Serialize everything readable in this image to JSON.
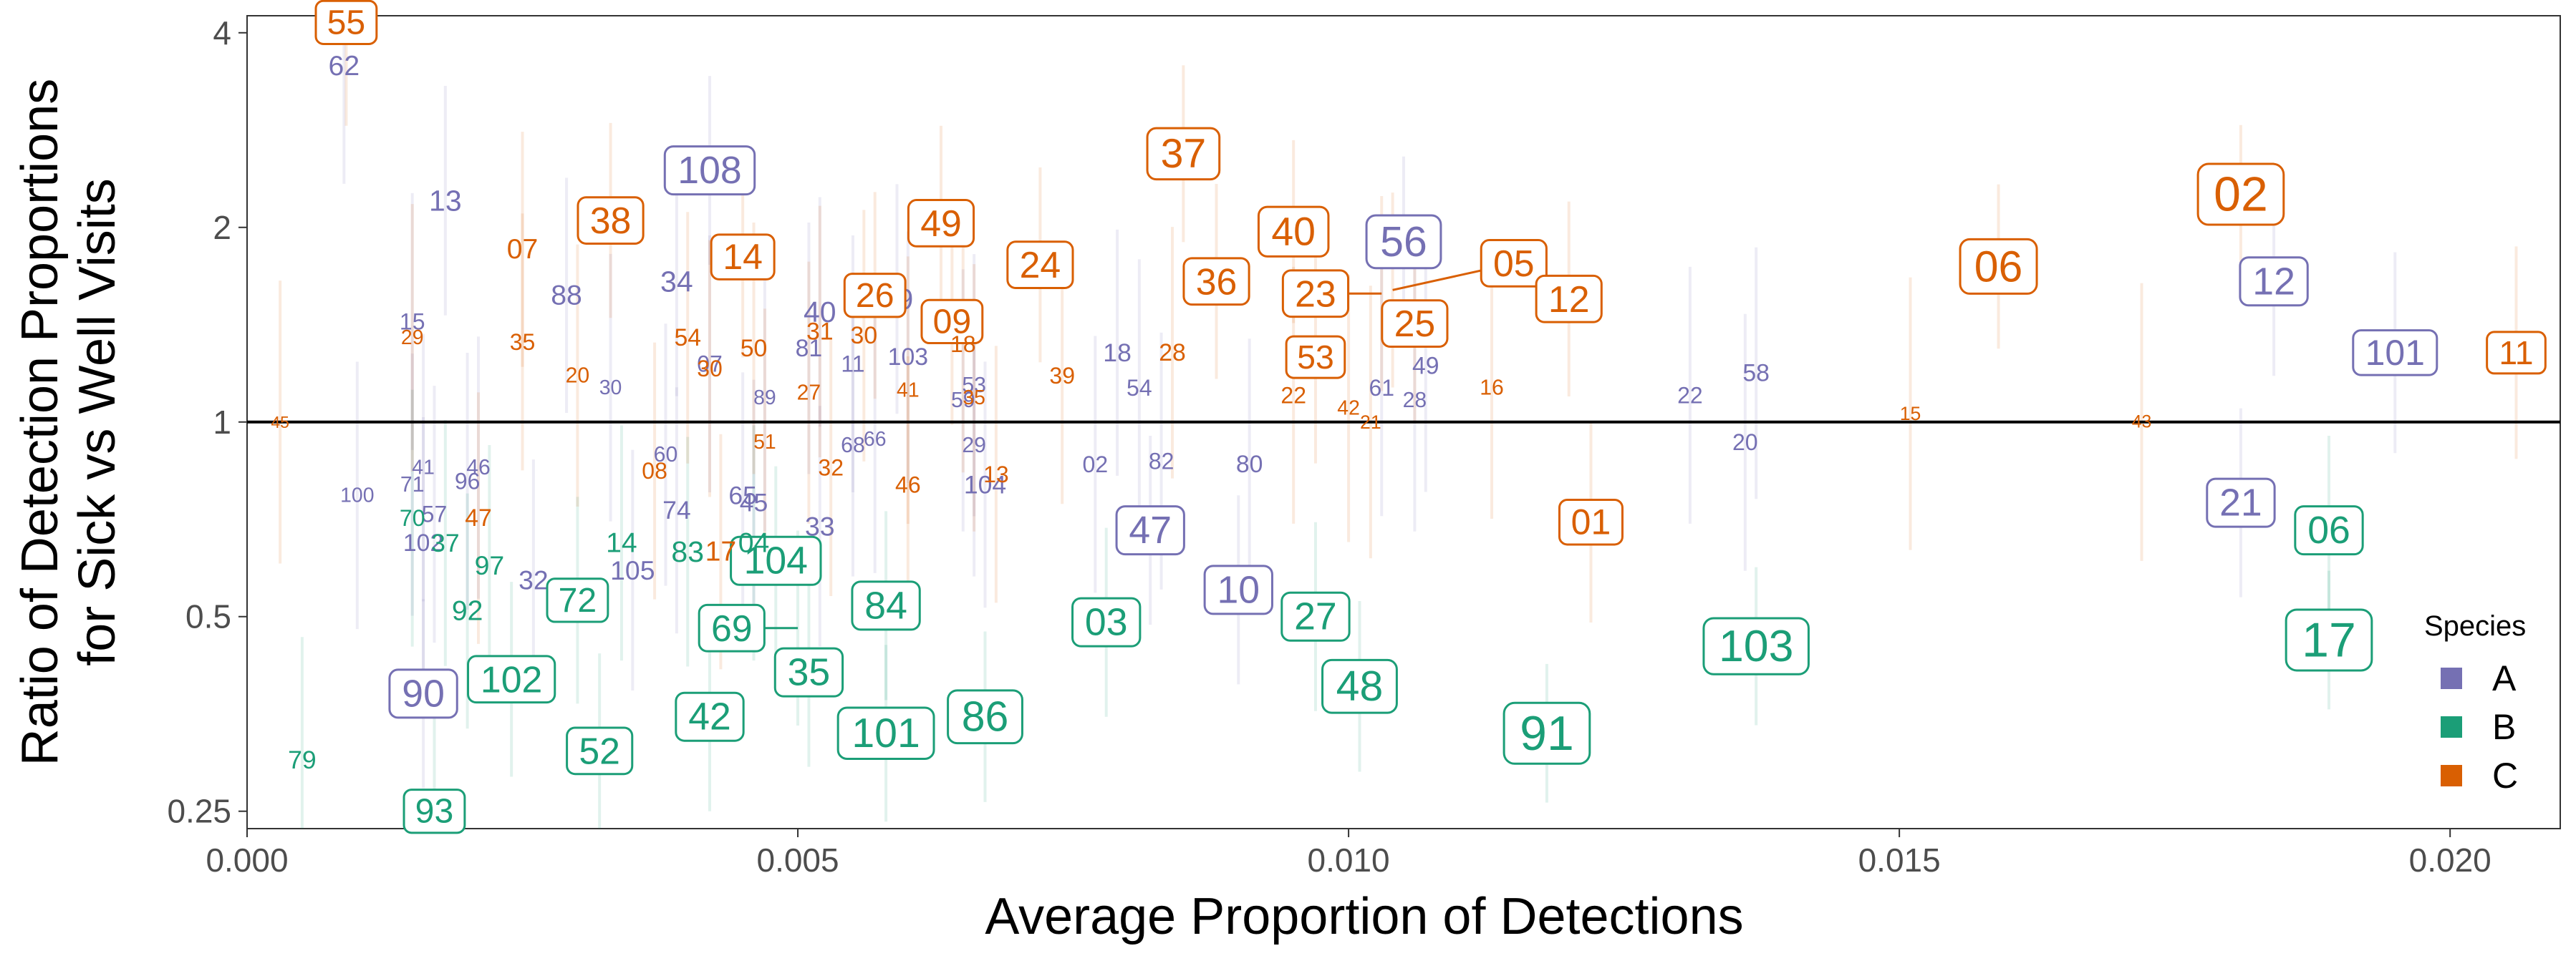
{
  "chart_data": {
    "type": "scatter",
    "title": "",
    "xlabel": "Average Proportion of Detections",
    "ylabel_lines": [
      "Ratio of Detection Proportions",
      "for Sick vs Well Visits"
    ],
    "xlim": [
      0,
      0.021
    ],
    "ylim": [
      0.235,
      4.25
    ],
    "y_scale": "log2",
    "reference_line_y": 1,
    "grid": false,
    "x_ticks": [
      0,
      0.005,
      0.01,
      0.015,
      0.02
    ],
    "x_tick_labels": [
      "0.000",
      "0.005",
      "0.010",
      "0.015",
      "0.020"
    ],
    "y_ticks": [
      0.25,
      0.5,
      1,
      2,
      4
    ],
    "y_tick_labels": [
      "0.25",
      "0.5",
      "1",
      "2",
      "4"
    ],
    "legend": {
      "title": "Species",
      "placement": "right",
      "entries": [
        {
          "name": "A",
          "color": "#7570b3"
        },
        {
          "name": "B",
          "color": "#1b9e77"
        },
        {
          "name": "C",
          "color": "#d95f02"
        }
      ]
    },
    "series": [
      {
        "name": "A",
        "color": "#7570b3",
        "points": [
          {
            "label": "12",
            "x": 0.0184,
            "y": 1.65,
            "boxed": true,
            "size": 2.2
          },
          {
            "label": "101",
            "x": 0.0195,
            "y": 1.28,
            "boxed": true,
            "size": 2.0
          },
          {
            "label": "21",
            "x": 0.0181,
            "y": 0.75,
            "boxed": true,
            "size": 2.2
          },
          {
            "label": "56",
            "x": 0.0105,
            "y": 1.9,
            "boxed": true,
            "size": 2.5
          },
          {
            "label": "108",
            "x": 0.0042,
            "y": 2.45,
            "boxed": true,
            "size": 2.2
          },
          {
            "label": "47",
            "x": 0.0082,
            "y": 0.68,
            "boxed": true,
            "size": 2.2
          },
          {
            "label": "10",
            "x": 0.009,
            "y": 0.55,
            "boxed": true,
            "size": 2.2
          },
          {
            "label": "90",
            "x": 0.0016,
            "y": 0.38,
            "boxed": true,
            "size": 2.2
          },
          {
            "label": "62",
            "x": 0.00088,
            "y": 3.55,
            "size": 1.4
          },
          {
            "label": "13",
            "x": 0.0018,
            "y": 2.2,
            "size": 1.5
          },
          {
            "label": "88",
            "x": 0.0029,
            "y": 1.57,
            "size": 1.4
          },
          {
            "label": "34",
            "x": 0.0039,
            "y": 1.65,
            "size": 1.5
          },
          {
            "label": "40",
            "x": 0.0052,
            "y": 1.48,
            "size": 1.5
          },
          {
            "label": "19",
            "x": 0.0059,
            "y": 1.55,
            "size": 1.5
          },
          {
            "label": "15",
            "x": 0.0015,
            "y": 1.43,
            "size": 1.0
          },
          {
            "label": "81",
            "x": 0.0051,
            "y": 1.3,
            "size": 1.1
          },
          {
            "label": "103",
            "x": 0.006,
            "y": 1.26,
            "size": 1.1
          },
          {
            "label": "11",
            "x": 0.0055,
            "y": 1.23,
            "size": 1.0
          },
          {
            "label": "07",
            "x": 0.0042,
            "y": 1.23,
            "size": 1.0
          },
          {
            "label": "18",
            "x": 0.0079,
            "y": 1.28,
            "size": 1.2
          },
          {
            "label": "54",
            "x": 0.0081,
            "y": 1.13,
            "size": 1.0
          },
          {
            "label": "53",
            "x": 0.0066,
            "y": 1.14,
            "size": 0.9
          },
          {
            "label": "59",
            "x": 0.0065,
            "y": 1.08,
            "size": 0.9
          },
          {
            "label": "61",
            "x": 0.0103,
            "y": 1.13,
            "size": 1.0
          },
          {
            "label": "49",
            "x": 0.0107,
            "y": 1.22,
            "size": 1.1
          },
          {
            "label": "28",
            "x": 0.0106,
            "y": 1.08,
            "size": 0.9
          },
          {
            "label": "22",
            "x": 0.0131,
            "y": 1.1,
            "size": 1.0
          },
          {
            "label": "58",
            "x": 0.0137,
            "y": 1.19,
            "size": 1.1
          },
          {
            "label": "20",
            "x": 0.0136,
            "y": 0.93,
            "size": 1.0
          },
          {
            "label": "30",
            "x": 0.0033,
            "y": 1.13,
            "size": 0.8
          },
          {
            "label": "89",
            "x": 0.0047,
            "y": 1.09,
            "size": 0.8
          },
          {
            "label": "60",
            "x": 0.0038,
            "y": 0.89,
            "size": 0.9
          },
          {
            "label": "41",
            "x": 0.0016,
            "y": 0.85,
            "size": 0.8
          },
          {
            "label": "46",
            "x": 0.0021,
            "y": 0.85,
            "size": 0.9
          },
          {
            "label": "96",
            "x": 0.002,
            "y": 0.81,
            "size": 1.0
          },
          {
            "label": "71",
            "x": 0.0015,
            "y": 0.8,
            "size": 0.9
          },
          {
            "label": "100",
            "x": 0.001,
            "y": 0.77,
            "size": 0.8
          },
          {
            "label": "57",
            "x": 0.0017,
            "y": 0.72,
            "size": 1.0
          },
          {
            "label": "102",
            "x": 0.0016,
            "y": 0.65,
            "size": 1.1
          },
          {
            "label": "74",
            "x": 0.0039,
            "y": 0.73,
            "size": 1.2
          },
          {
            "label": "65",
            "x": 0.0045,
            "y": 0.77,
            "size": 1.2
          },
          {
            "label": "45",
            "x": 0.0046,
            "y": 0.75,
            "size": 1.2
          },
          {
            "label": "33",
            "x": 0.0052,
            "y": 0.69,
            "size": 1.3
          },
          {
            "label": "32",
            "x": 0.0026,
            "y": 0.57,
            "size": 1.3
          },
          {
            "label": "105",
            "x": 0.0035,
            "y": 0.59,
            "size": 1.3
          },
          {
            "label": "68",
            "x": 0.0055,
            "y": 0.92,
            "size": 0.9
          },
          {
            "label": "66",
            "x": 0.0057,
            "y": 0.94,
            "size": 0.8
          },
          {
            "label": "29",
            "x": 0.0066,
            "y": 0.92,
            "size": 0.9
          },
          {
            "label": "104",
            "x": 0.0067,
            "y": 0.8,
            "size": 1.2
          },
          {
            "label": "02",
            "x": 0.0077,
            "y": 0.86,
            "size": 1.0
          },
          {
            "label": "82",
            "x": 0.0083,
            "y": 0.87,
            "size": 1.0
          },
          {
            "label": "80",
            "x": 0.0091,
            "y": 0.86,
            "size": 1.1
          }
        ]
      },
      {
        "name": "B",
        "color": "#1b9e77",
        "points": [
          {
            "label": "17",
            "x": 0.0189,
            "y": 0.46,
            "boxed": true,
            "size": 3.0
          },
          {
            "label": "06",
            "x": 0.0189,
            "y": 0.68,
            "boxed": true,
            "size": 2.2
          },
          {
            "label": "103",
            "x": 0.0137,
            "y": 0.45,
            "boxed": true,
            "size": 2.7
          },
          {
            "label": "91",
            "x": 0.0118,
            "y": 0.33,
            "boxed": true,
            "size": 3.0
          },
          {
            "label": "48",
            "x": 0.0101,
            "y": 0.39,
            "boxed": true,
            "size": 2.5
          },
          {
            "label": "27",
            "x": 0.0097,
            "y": 0.5,
            "boxed": true,
            "size": 2.2
          },
          {
            "label": "03",
            "x": 0.0078,
            "y": 0.49,
            "boxed": true,
            "size": 2.2
          },
          {
            "label": "86",
            "x": 0.0067,
            "y": 0.35,
            "boxed": true,
            "size": 2.5
          },
          {
            "label": "101",
            "x": 0.0058,
            "y": 0.33,
            "boxed": true,
            "size": 2.4
          },
          {
            "label": "84",
            "x": 0.0058,
            "y": 0.52,
            "boxed": true,
            "size": 2.2
          },
          {
            "label": "104",
            "x": 0.0048,
            "y": 0.61,
            "boxed": true,
            "size": 2.2
          },
          {
            "label": "69",
            "x": 0.005,
            "y": 0.48,
            "boxed": true,
            "size": 2.1,
            "label_dx": -0.0006
          },
          {
            "label": "35",
            "x": 0.0051,
            "y": 0.41,
            "boxed": true,
            "size": 2.2
          },
          {
            "label": "42",
            "x": 0.0042,
            "y": 0.35,
            "boxed": true,
            "size": 2.2
          },
          {
            "label": "52",
            "x": 0.0032,
            "y": 0.31,
            "boxed": true,
            "size": 2.1
          },
          {
            "label": "72",
            "x": 0.003,
            "y": 0.53,
            "boxed": true,
            "size": 1.9
          },
          {
            "label": "102",
            "x": 0.0024,
            "y": 0.4,
            "boxed": true,
            "size": 2.1
          },
          {
            "label": "93",
            "x": 0.0017,
            "y": 0.25,
            "boxed": true,
            "size": 1.9
          },
          {
            "label": "79",
            "x": 0.0005,
            "y": 0.3,
            "size": 1.2
          },
          {
            "label": "92",
            "x": 0.002,
            "y": 0.51,
            "size": 1.4
          },
          {
            "label": "97",
            "x": 0.0022,
            "y": 0.6,
            "size": 1.3
          },
          {
            "label": "37",
            "x": 0.0018,
            "y": 0.65,
            "size": 1.2
          },
          {
            "label": "70",
            "x": 0.0015,
            "y": 0.71,
            "size": 1.0
          },
          {
            "label": "14",
            "x": 0.0034,
            "y": 0.65,
            "size": 1.4
          },
          {
            "label": "83",
            "x": 0.004,
            "y": 0.63,
            "size": 1.5
          },
          {
            "label": "04",
            "x": 0.0046,
            "y": 0.65,
            "size": 1.4
          }
        ]
      },
      {
        "name": "C",
        "color": "#d95f02",
        "points": [
          {
            "label": "02",
            "x": 0.0181,
            "y": 2.25,
            "boxed": true,
            "size": 3.0
          },
          {
            "label": "06",
            "x": 0.0159,
            "y": 1.74,
            "boxed": true,
            "size": 2.6
          },
          {
            "label": "11",
            "x": 0.0206,
            "y": 1.28,
            "boxed": true,
            "size": 1.8
          },
          {
            "label": "55",
            "x": 0.0009,
            "y": 4.15,
            "boxed": true,
            "size": 1.9
          },
          {
            "label": "37",
            "x": 0.0085,
            "y": 2.6,
            "boxed": true,
            "size": 2.4
          },
          {
            "label": "38",
            "x": 0.0033,
            "y": 2.05,
            "boxed": true,
            "size": 2.1
          },
          {
            "label": "14",
            "x": 0.0045,
            "y": 1.8,
            "boxed": true,
            "size": 2.0
          },
          {
            "label": "49",
            "x": 0.0063,
            "y": 2.03,
            "boxed": true,
            "size": 2.1
          },
          {
            "label": "24",
            "x": 0.0072,
            "y": 1.75,
            "boxed": true,
            "size": 2.1
          },
          {
            "label": "40",
            "x": 0.0095,
            "y": 1.97,
            "boxed": true,
            "size": 2.3
          },
          {
            "label": "36",
            "x": 0.0088,
            "y": 1.65,
            "boxed": true,
            "size": 2.1
          },
          {
            "label": "05",
            "x": 0.0104,
            "y": 1.6,
            "boxed": true,
            "size": 2.1,
            "label_dx": 0.0011,
            "label_dy_ratio": 1.1
          },
          {
            "label": "23",
            "x": 0.0103,
            "y": 1.58,
            "boxed": true,
            "size": 2.1,
            "label_dx": -0.0006
          },
          {
            "label": "25",
            "x": 0.0106,
            "y": 1.42,
            "boxed": true,
            "size": 2.1
          },
          {
            "label": "12",
            "x": 0.012,
            "y": 1.55,
            "boxed": true,
            "size": 2.1
          },
          {
            "label": "09",
            "x": 0.0064,
            "y": 1.43,
            "boxed": true,
            "size": 1.9
          },
          {
            "label": "26",
            "x": 0.0057,
            "y": 1.57,
            "boxed": true,
            "size": 1.9
          },
          {
            "label": "53",
            "x": 0.0097,
            "y": 1.26,
            "boxed": true,
            "size": 1.8
          },
          {
            "label": "01",
            "x": 0.0122,
            "y": 0.7,
            "boxed": true,
            "size": 2.0
          },
          {
            "label": "07",
            "x": 0.0025,
            "y": 1.85,
            "size": 1.4
          },
          {
            "label": "29",
            "x": 0.0015,
            "y": 1.35,
            "size": 0.8
          },
          {
            "label": "35",
            "x": 0.0025,
            "y": 1.33,
            "size": 1.0
          },
          {
            "label": "20",
            "x": 0.003,
            "y": 1.18,
            "size": 0.9
          },
          {
            "label": "54",
            "x": 0.004,
            "y": 1.35,
            "size": 1.1
          },
          {
            "label": "30",
            "x": 0.0042,
            "y": 1.21,
            "size": 1.0
          },
          {
            "label": "50",
            "x": 0.0046,
            "y": 1.3,
            "size": 1.1
          },
          {
            "label": "31",
            "x": 0.0052,
            "y": 1.38,
            "size": 1.1
          },
          {
            "label": "30",
            "x": 0.0056,
            "y": 1.36,
            "size": 1.1
          },
          {
            "label": "18",
            "x": 0.0065,
            "y": 1.32,
            "size": 1.0
          },
          {
            "label": "27",
            "x": 0.0051,
            "y": 1.11,
            "size": 0.9
          },
          {
            "label": "41",
            "x": 0.006,
            "y": 1.12,
            "size": 0.8
          },
          {
            "label": "35",
            "x": 0.0066,
            "y": 1.09,
            "size": 0.8
          },
          {
            "label": "39",
            "x": 0.0074,
            "y": 1.18,
            "size": 1.0
          },
          {
            "label": "28",
            "x": 0.0084,
            "y": 1.28,
            "size": 1.1
          },
          {
            "label": "22",
            "x": 0.0095,
            "y": 1.1,
            "size": 1.0
          },
          {
            "label": "42",
            "x": 0.01,
            "y": 1.05,
            "size": 0.8
          },
          {
            "label": "21",
            "x": 0.0102,
            "y": 1.0,
            "size": 0.7
          },
          {
            "label": "16",
            "x": 0.0113,
            "y": 1.13,
            "size": 0.9
          },
          {
            "label": "51",
            "x": 0.0047,
            "y": 0.93,
            "size": 0.8
          },
          {
            "label": "32",
            "x": 0.0053,
            "y": 0.85,
            "size": 1.0
          },
          {
            "label": "08",
            "x": 0.0037,
            "y": 0.84,
            "size": 1.0
          },
          {
            "label": "47",
            "x": 0.0021,
            "y": 0.71,
            "size": 1.1
          },
          {
            "label": "17",
            "x": 0.0043,
            "y": 0.63,
            "size": 1.4
          },
          {
            "label": "46",
            "x": 0.006,
            "y": 0.8,
            "size": 1.0
          },
          {
            "label": "13",
            "x": 0.0068,
            "y": 0.83,
            "size": 1.0
          },
          {
            "label": "15",
            "x": 0.0151,
            "y": 1.03,
            "size": 0.7
          },
          {
            "label": "43",
            "x": 0.0172,
            "y": 1.0,
            "size": 0.6
          },
          {
            "label": "45",
            "x": 0.0003,
            "y": 1.0,
            "size": 0.5
          }
        ]
      }
    ]
  }
}
